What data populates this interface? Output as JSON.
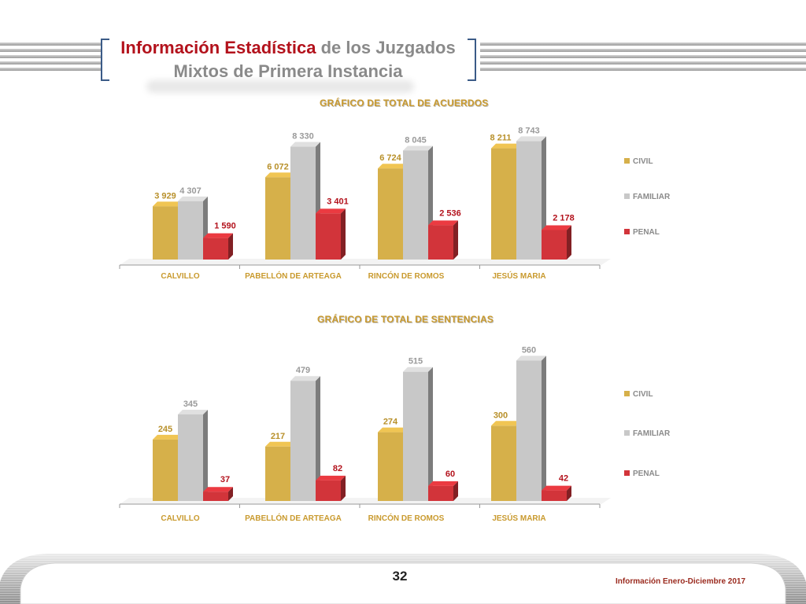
{
  "header": {
    "title_highlight": "Información Estadística",
    "title_rest": " de los Juzgados",
    "title_line2": "Mixtos de Primera Instancia"
  },
  "colors": {
    "civil": "#d6b04a",
    "familiar": "#c8c8c8",
    "penal": "#d2343a",
    "title_red": "#b3121c",
    "chart_title": "#c99a2e"
  },
  "chart_data": [
    {
      "type": "bar",
      "title": "GRÁFICO  DE  TOTAL  DE ACUERDOS",
      "categories": [
        "CALVILLO",
        "PABELLÓN DE ARTEAGA",
        "RINCÓN DE ROMOS",
        "JESÚS MARIA"
      ],
      "series": [
        {
          "name": "CIVIL",
          "values": [
            3929,
            6072,
            6724,
            8211
          ],
          "labels": [
            "3 929",
            "6 072",
            "6 724",
            "8 211"
          ]
        },
        {
          "name": "FAMILIAR",
          "values": [
            4307,
            8330,
            8045,
            8743
          ],
          "labels": [
            "4 307",
            "8 330",
            "8 045",
            "8 743"
          ]
        },
        {
          "name": "PENAL",
          "values": [
            1590,
            3401,
            2536,
            2178
          ],
          "labels": [
            "1 590",
            "3 401",
            "2 536",
            "2 178"
          ]
        }
      ],
      "legend": "right",
      "grid": false,
      "ylim": [
        0,
        9000
      ]
    },
    {
      "type": "bar",
      "title": "GRÁFICO  DE  TOTAL  DE SENTENCIAS",
      "categories": [
        "CALVILLO",
        "PABELLÓN DE ARTEAGA",
        "RINCÓN DE ROMOS",
        "JESÚS MARIA"
      ],
      "series": [
        {
          "name": "CIVIL",
          "values": [
            245,
            217,
            274,
            300
          ],
          "labels": [
            "245",
            "217",
            "274",
            "300"
          ]
        },
        {
          "name": "FAMILIAR",
          "values": [
            345,
            479,
            515,
            560
          ],
          "labels": [
            "345",
            "479",
            "515",
            "560"
          ]
        },
        {
          "name": "PENAL",
          "values": [
            37,
            82,
            60,
            42
          ],
          "labels": [
            "37",
            "82",
            "60",
            "42"
          ]
        }
      ],
      "legend": "right",
      "grid": false,
      "ylim": [
        0,
        580
      ]
    }
  ],
  "footer": {
    "page_number": "32",
    "note": "Información Enero-Diciembre 2017"
  }
}
